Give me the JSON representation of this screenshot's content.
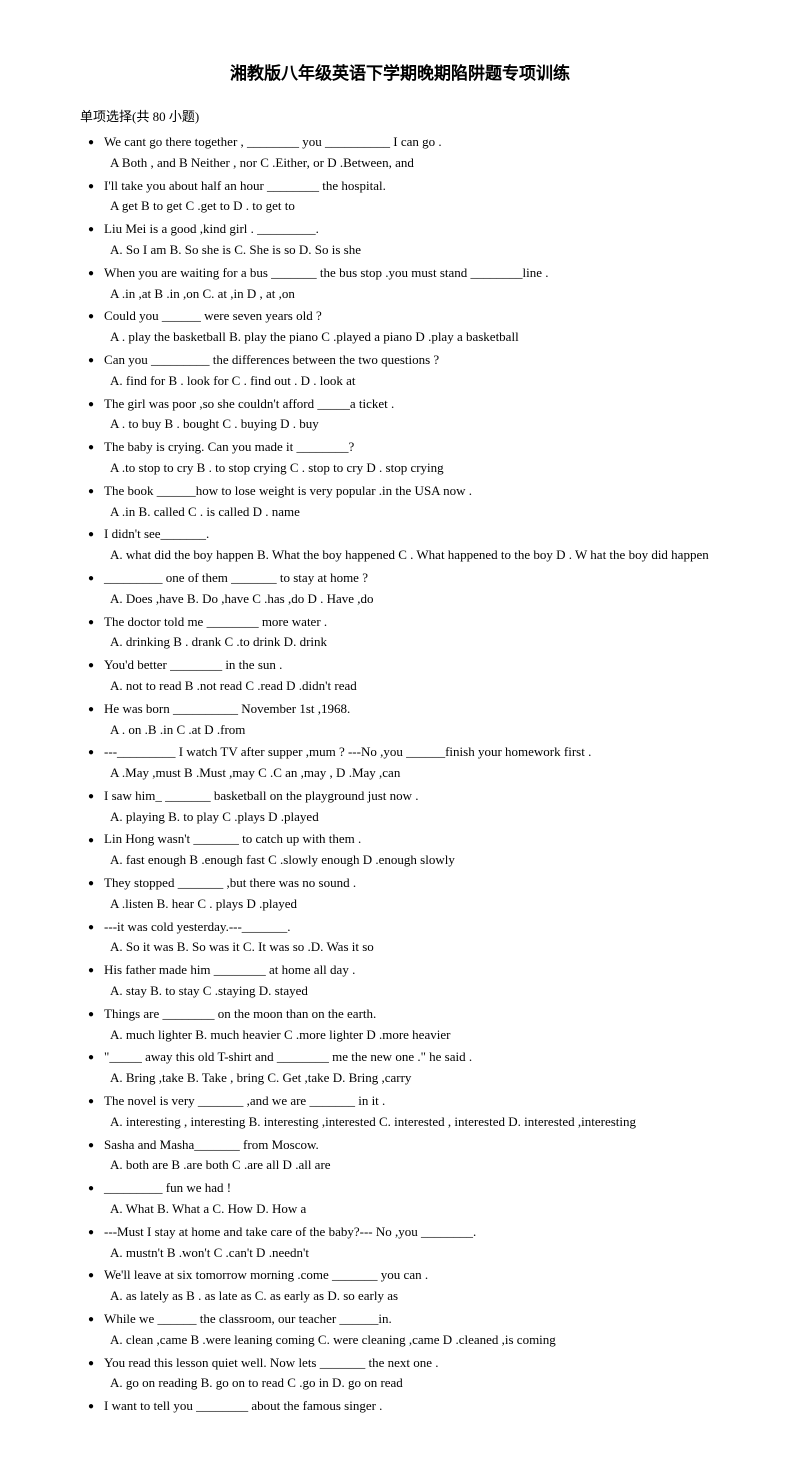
{
  "title": "湘教版八年级英语下学期晚期陷阱题专项训练",
  "section": "单项选择(共 80 小题)",
  "questions": [
    {
      "q": "We cant go there together , ________ you   __________ I can go .",
      "opts": "A   Both , and     B    Neither , nor C .Either, or    D  .Between, and"
    },
    {
      "q": "I'll take you about half an hour ________ the hospital.",
      "opts": "A    get       B    to get    C .get to     D . to get to"
    },
    {
      "q": "Liu Mei is a good ,kind girl . _________.",
      "opts": "A. So I am     B. So she is     C. She is so      D. So is she"
    },
    {
      "q": "When you are waiting for a bus _______ the bus stop .you must stand  ________line .",
      "opts": "A .in ,at     B  .in ,on     C. at ,in      D ,    at ,on"
    },
    {
      "q": "Could you  ______ were seven years old ?",
      "opts": "A . play the basketball    B. play the piano    C .played a piano     D .play a basketball"
    },
    {
      "q": "Can you  _________ the differences between the two questions ?",
      "opts": "A. find for     B . look for      C . find out     . D . look at"
    },
    {
      "q": "The girl was poor ,so she couldn't afford _____a ticket .",
      "opts": "A . to buy     B . bought      C . buying     D . buy"
    },
    {
      "q": "The baby is crying. Can you made it  ________?",
      "opts": "A .to stop to cry    B . to stop crying       C . stop to cry       D . stop crying"
    },
    {
      "q": "The book  ______how to lose weight is very popular .in the USA now .",
      "opts": "A .in     B. called     C . is called       D . name"
    },
    {
      "q": "I didn't see_______.",
      "opts": "A.    what did the boy happen     B. What the boy happened      C . What happened to the boy    D . W hat the boy did happen"
    },
    {
      "q": "_________ one of them _______ to stay at home ?",
      "opts": "A. Does ,have    B. Do ,have    C .has ,do     D . Have ,do"
    },
    {
      "q": "The doctor told me  ________ more water .",
      "opts": "A. drinking    B . drank    C .to drink    D. drink"
    },
    {
      "q": "You'd better ________ in the sun .",
      "opts": "A. not to read    B .not read    C .read    D .didn't read"
    },
    {
      "q": "He was born __________ November 1st ,1968.",
      "opts": "A . on     .B .in     C .at    D .from"
    },
    {
      "q": "---_________ I watch TV after supper ,mum ? ---No ,you ______finish your homework first .",
      "opts": "A .May ,must     B .Must ,may    C .C     an ,may ,    D .May ,can"
    },
    {
      "q": "I saw him_ _______ basketball on the playground just now .",
      "opts": "A. playing    B. to play      C .plays      D .played"
    },
    {
      "q": "Lin Hong wasn't _______ to catch up with    them .",
      "opts": "A. fast enough    B .enough fast     C .slowly enough     D .enough slowly"
    },
    {
      "q": "They stopped _______  ,but there was no sound .",
      "opts": "A .listen    B. hear    C . plays     D .played"
    },
    {
      "q": "---it was cold yesterday.---_______.",
      "opts": "A. So it was    B. So was it    C. It was so    .D. Was it so"
    },
    {
      "q": "His father made him  ________ at home all day .",
      "opts": "A. stay    B. to stay    C .staying     D. stayed"
    },
    {
      "q": "Things are  ________ on the moon than on the earth.",
      "opts": "  A. much lighter    B. much heavier    C .more lighter    D .more heavier"
    },
    {
      "q": "\"_____ away this old    T-shirt and ________ me the new one .\" he said .",
      "opts": "A. Bring ,take    B. Take , bring     C. Get ,take     D. Bring ,carry"
    },
    {
      "q": "The novel is very _______  ,and we are _______ in it .",
      "opts": "A. interesting , interesting        B. interesting ,interested        C. interested    , interested     D. interested  ,interesting"
    },
    {
      "q": "Sasha and Masha_______ from Moscow.",
      "opts": "A. both are    B .are both    C .are all    D .all are"
    },
    {
      "q": "_________ fun we had !",
      "opts": "A. What      B. What a     C. How     D. How    a"
    },
    {
      "q": "---Must I stay at home and take care of the baby?--- No ,you  ________.",
      "opts": "A. mustn't    B .won't     C .can't    D .needn't"
    },
    {
      "q": "We'll leave at six tomorrow morning .come _______ you can .",
      "opts": "A. as lately as B . as late as    C. as early as    D. so early as"
    },
    {
      "q": "While we  ______ the classroom, our teacher ______in.",
      "opts": "A. clean ,came    B .were leaning    coming    C. were cleaning ,came    D .cleaned ,is coming"
    },
    {
      "q": "You read this lesson quiet well. Now lets _______ the next one .",
      "opts": "A. go on reading    B. go on to read    C .go in    D. go on read"
    },
    {
      "q": "I want to tell you  ________ about the famous singer .",
      "opts": ""
    }
  ]
}
